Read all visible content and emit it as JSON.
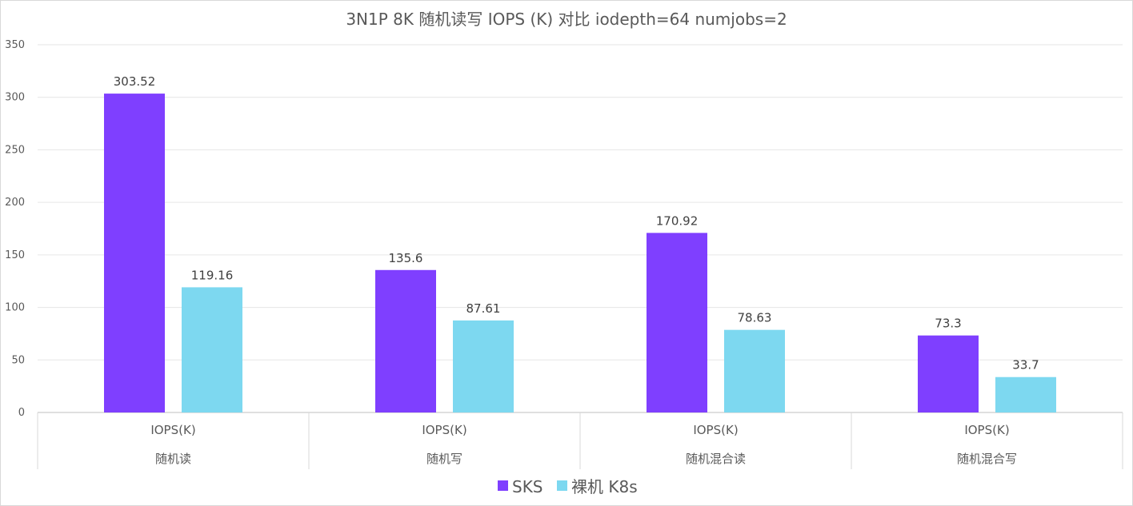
{
  "chart_data": {
    "type": "bar",
    "title": "3N1P 8K 随机读写 IOPS (K) 对比 iodepth=64 numjobs=2",
    "categories": [
      {
        "metric": "IOPS(K)",
        "group": "随机读"
      },
      {
        "metric": "IOPS(K)",
        "group": "随机写"
      },
      {
        "metric": "IOPS(K)",
        "group": "随机混合读"
      },
      {
        "metric": "IOPS(K)",
        "group": "随机混合写"
      }
    ],
    "series": [
      {
        "name": "SKS",
        "color": "#7F3FFF",
        "values": [
          303.52,
          135.6,
          170.92,
          73.3
        ],
        "labels": [
          "303.52",
          "135.6",
          "170.92",
          "73.3"
        ]
      },
      {
        "name": "裸机 K8s",
        "color": "#7DD8F0",
        "values": [
          119.16,
          87.61,
          78.63,
          33.7
        ],
        "labels": [
          "119.16",
          "87.61",
          "78.63",
          "33.7"
        ]
      }
    ],
    "ylim": [
      0,
      350
    ],
    "yticks": [
      0,
      50,
      100,
      150,
      200,
      250,
      300,
      350
    ],
    "grid": true,
    "legend_position": "bottom"
  }
}
